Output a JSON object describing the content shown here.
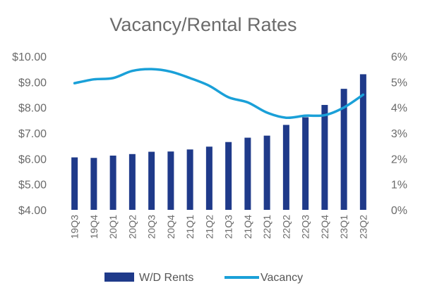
{
  "chart_data": {
    "type": "bar",
    "title": "Vacancy/Rental Rates",
    "categories": [
      "19Q3",
      "19Q4",
      "20Q1",
      "20Q2",
      "20Q3",
      "20Q4",
      "21Q1",
      "21Q2",
      "21Q3",
      "21Q4",
      "22Q1",
      "22Q2",
      "22Q3",
      "22Q4",
      "23Q1",
      "23Q2"
    ],
    "series": [
      {
        "name": "W/D Rents",
        "type": "bar",
        "axis": "left",
        "color": "#1f3a8a",
        "values": [
          6.05,
          6.03,
          6.12,
          6.18,
          6.27,
          6.28,
          6.36,
          6.47,
          6.65,
          6.82,
          6.9,
          7.32,
          7.62,
          8.1,
          8.73,
          9.3
        ]
      },
      {
        "name": "Vacancy",
        "type": "line",
        "axis": "right",
        "color": "#1aa0d8",
        "values": [
          4.95,
          5.1,
          5.15,
          5.43,
          5.5,
          5.4,
          5.15,
          4.85,
          4.4,
          4.2,
          3.8,
          3.6,
          3.68,
          3.7,
          4.0,
          4.5
        ]
      }
    ],
    "y_left": {
      "min": 4,
      "max": 10,
      "ticks": [
        "$4.00",
        "$5.00",
        "$6.00",
        "$7.00",
        "$8.00",
        "$9.00",
        "$10.00"
      ]
    },
    "y_right": {
      "min": 0,
      "max": 6,
      "ticks": [
        "0%",
        "1%",
        "2%",
        "3%",
        "4%",
        "5%",
        "6%"
      ]
    },
    "grid": false,
    "legend_position": "bottom"
  }
}
